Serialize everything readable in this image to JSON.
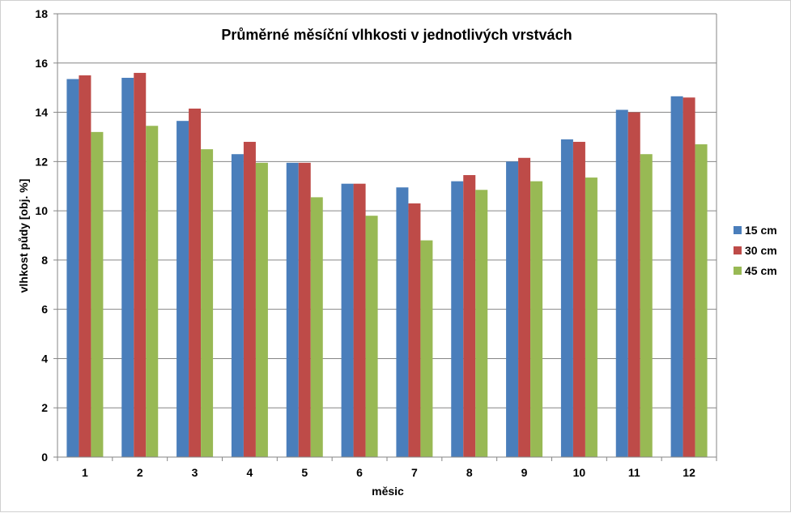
{
  "chart_data": {
    "type": "bar",
    "title": "Průměrné měsíční vlhkosti v jednotlivých vrstvách",
    "xlabel": "měsic",
    "ylabel": "vlhkost půdy [obj. %]",
    "categories": [
      "1",
      "2",
      "3",
      "4",
      "5",
      "6",
      "7",
      "8",
      "9",
      "10",
      "11",
      "12"
    ],
    "series": [
      {
        "name": "15 cm",
        "color": "#4a7ebb",
        "values": [
          15.35,
          15.4,
          13.65,
          12.3,
          11.95,
          11.1,
          10.95,
          11.2,
          12.0,
          12.9,
          14.1,
          14.65
        ]
      },
      {
        "name": "30 cm",
        "color": "#be4b48",
        "values": [
          15.5,
          15.6,
          14.15,
          12.8,
          11.95,
          11.1,
          10.3,
          11.45,
          12.15,
          12.8,
          14.0,
          14.6
        ]
      },
      {
        "name": "45 cm",
        "color": "#98b954",
        "values": [
          13.2,
          13.45,
          12.5,
          11.95,
          10.55,
          9.8,
          8.8,
          10.85,
          11.2,
          11.35,
          12.3,
          12.7
        ]
      }
    ],
    "ylim": [
      0,
      18
    ],
    "yticks": [
      0,
      2,
      4,
      6,
      8,
      10,
      12,
      14,
      16,
      18
    ],
    "grid": true,
    "legend_position": "right"
  }
}
